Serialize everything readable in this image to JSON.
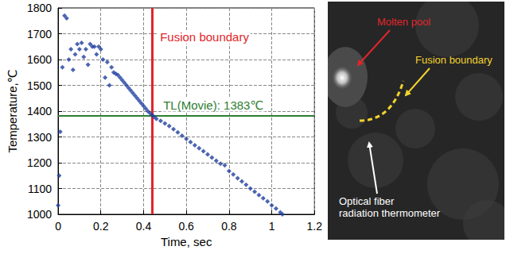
{
  "chart_data": {
    "type": "scatter",
    "xlabel": "Time, sec",
    "ylabel": "Temperature,℃",
    "color": "#1f3fa0",
    "marker": "diamond",
    "grid": true,
    "xlim": [
      0,
      1.2
    ],
    "xticks": [
      0,
      0.2,
      0.4,
      0.6,
      0.8,
      1.0,
      1.2
    ],
    "ylim": [
      1000,
      1800
    ],
    "yticks": [
      1000,
      1100,
      1200,
      1300,
      1400,
      1500,
      1600,
      1700,
      1800
    ],
    "x": [
      0,
      0.005,
      0.01,
      0.02,
      0.03,
      0.04,
      0.05,
      0.06,
      0.07,
      0.08,
      0.09,
      0.1,
      0.11,
      0.12,
      0.13,
      0.14,
      0.15,
      0.16,
      0.17,
      0.18,
      0.19,
      0.2,
      0.21,
      0.22,
      0.23,
      0.24,
      0.25,
      0.26,
      0.27,
      0.28,
      0.29,
      0.3,
      0.31,
      0.32,
      0.33,
      0.34,
      0.35,
      0.36,
      0.37,
      0.38,
      0.39,
      0.4,
      0.41,
      0.42,
      0.43,
      0.44,
      0.45,
      0.46,
      0.48,
      0.5,
      0.52,
      0.54,
      0.56,
      0.58,
      0.6,
      0.62,
      0.64,
      0.66,
      0.68,
      0.7,
      0.72,
      0.74,
      0.76,
      0.78,
      0.8,
      0.82,
      0.84,
      0.86,
      0.88,
      0.9,
      0.92,
      0.94,
      0.96,
      0.98,
      1.0,
      1.02,
      1.04,
      1.05
    ],
    "values": [
      1035,
      1150,
      1320,
      1570,
      1770,
      1760,
      1600,
      1640,
      1560,
      1620,
      1660,
      1640,
      1665,
      1610,
      1640,
      1580,
      1660,
      1650,
      1650,
      1620,
      1650,
      1640,
      1600,
      1530,
      1590,
      1500,
      1570,
      1550,
      1545,
      1540,
      1530,
      1520,
      1510,
      1500,
      1490,
      1480,
      1470,
      1460,
      1450,
      1440,
      1430,
      1420,
      1410,
      1400,
      1392,
      1385,
      1378,
      1370,
      1362,
      1352,
      1342,
      1330,
      1318,
      1305,
      1292,
      1280,
      1268,
      1256,
      1245,
      1232,
      1220,
      1208,
      1196,
      1190,
      1168,
      1155,
      1140,
      1128,
      1115,
      1100,
      1088,
      1075,
      1062,
      1050,
      1035,
      1022,
      1008,
      1000
    ],
    "annotations": [
      {
        "type": "vline",
        "value": 0.44,
        "label": "Fusion boundary",
        "color": "#e0262b"
      },
      {
        "type": "hline",
        "value": 1383,
        "label": "TL(Movie): 1383℃",
        "color": "#2e7d32"
      }
    ]
  },
  "image_panel": {
    "background": "#262626",
    "labels": [
      {
        "text": "Molten pool",
        "color": "#e0262b"
      },
      {
        "text": "Fusion boundary",
        "color": "#f2d22e"
      },
      {
        "text": "Optical fiber radiation thermometer",
        "color": "#ffffff"
      }
    ]
  }
}
